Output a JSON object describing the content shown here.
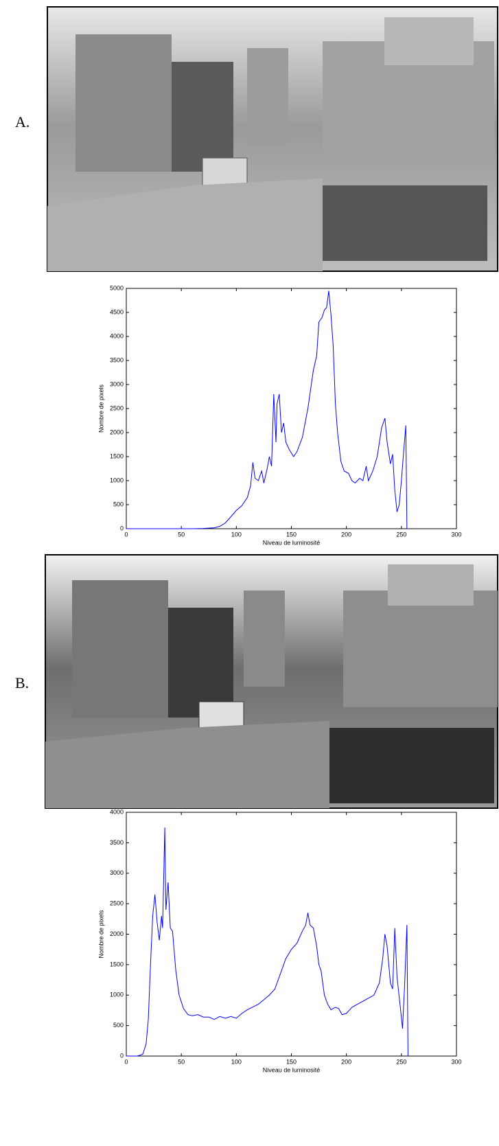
{
  "panels": [
    {
      "label": "A."
    },
    {
      "label": "B."
    }
  ],
  "chart_data": [
    {
      "type": "line",
      "xlabel": "Niveau de luminosité",
      "ylabel": "Nombre de pixels",
      "xlim": [
        0,
        300
      ],
      "xticks": [
        0,
        50,
        100,
        150,
        200,
        250,
        300
      ],
      "ylim": [
        0,
        5000
      ],
      "yticks": [
        0,
        500,
        1000,
        1500,
        2000,
        2500,
        3000,
        3500,
        4000,
        4500,
        5000
      ],
      "x": [
        0,
        50,
        60,
        70,
        80,
        85,
        90,
        95,
        100,
        105,
        110,
        113,
        115,
        117,
        120,
        123,
        125,
        128,
        130,
        132,
        134,
        136,
        137,
        139,
        141,
        143,
        145,
        148,
        152,
        155,
        160,
        165,
        170,
        173,
        175,
        178,
        180,
        182,
        184,
        186,
        188,
        190,
        192,
        195,
        198,
        202,
        205,
        208,
        212,
        215,
        218,
        220,
        224,
        228,
        232,
        235,
        237,
        240,
        242,
        244,
        246,
        248,
        250,
        252,
        254,
        255,
        256
      ],
      "series": [
        {
          "color": "#0000ff",
          "values": [
            0,
            0,
            0,
            5,
            20,
            50,
            120,
            250,
            380,
            480,
            650,
            900,
            1380,
            1050,
            1000,
            1200,
            950,
            1250,
            1500,
            1300,
            2800,
            1800,
            2600,
            2800,
            2000,
            2200,
            1800,
            1650,
            1500,
            1600,
            1900,
            2500,
            3300,
            3600,
            4300,
            4400,
            4550,
            4600,
            4950,
            4450,
            3800,
            2600,
            2000,
            1400,
            1200,
            1150,
            1000,
            950,
            1050,
            1000,
            1300,
            1000,
            1200,
            1500,
            2100,
            2300,
            1800,
            1350,
            1550,
            800,
            350,
            500,
            1000,
            1600,
            2150,
            0,
            0
          ]
        }
      ]
    },
    {
      "type": "line",
      "xlabel": "Niveau de luminosité",
      "ylabel": "Nombre de pixels",
      "xlim": [
        0,
        300
      ],
      "xticks": [
        0,
        50,
        100,
        150,
        200,
        250,
        300
      ],
      "ylim": [
        0,
        4000
      ],
      "yticks": [
        0,
        500,
        1000,
        1500,
        2000,
        2500,
        3000,
        3500,
        4000
      ],
      "x": [
        0,
        10,
        15,
        18,
        20,
        22,
        24,
        26,
        28,
        30,
        32,
        33,
        35,
        36,
        38,
        40,
        42,
        45,
        48,
        52,
        56,
        60,
        65,
        70,
        75,
        80,
        85,
        90,
        95,
        100,
        105,
        110,
        120,
        130,
        135,
        140,
        145,
        150,
        155,
        160,
        163,
        165,
        167,
        170,
        173,
        175,
        177,
        180,
        183,
        186,
        190,
        193,
        196,
        200,
        205,
        210,
        215,
        220,
        225,
        230,
        233,
        235,
        237,
        240,
        242,
        244,
        246,
        249,
        251,
        253,
        254,
        255,
        256
      ],
      "series": [
        {
          "color": "#0000ff",
          "values": [
            0,
            0,
            30,
            200,
            600,
            1500,
            2300,
            2650,
            2200,
            1900,
            2300,
            2100,
            3750,
            2400,
            2850,
            2100,
            2050,
            1400,
            1000,
            780,
            680,
            660,
            680,
            640,
            640,
            600,
            650,
            620,
            650,
            620,
            700,
            760,
            850,
            1000,
            1100,
            1350,
            1600,
            1750,
            1850,
            2050,
            2150,
            2350,
            2150,
            2100,
            1800,
            1500,
            1400,
            1000,
            850,
            760,
            800,
            780,
            680,
            700,
            800,
            850,
            900,
            950,
            1000,
            1200,
            1600,
            2000,
            1800,
            1200,
            1100,
            2100,
            1300,
            800,
            450,
            1200,
            1700,
            2150,
            0
          ]
        }
      ]
    }
  ]
}
